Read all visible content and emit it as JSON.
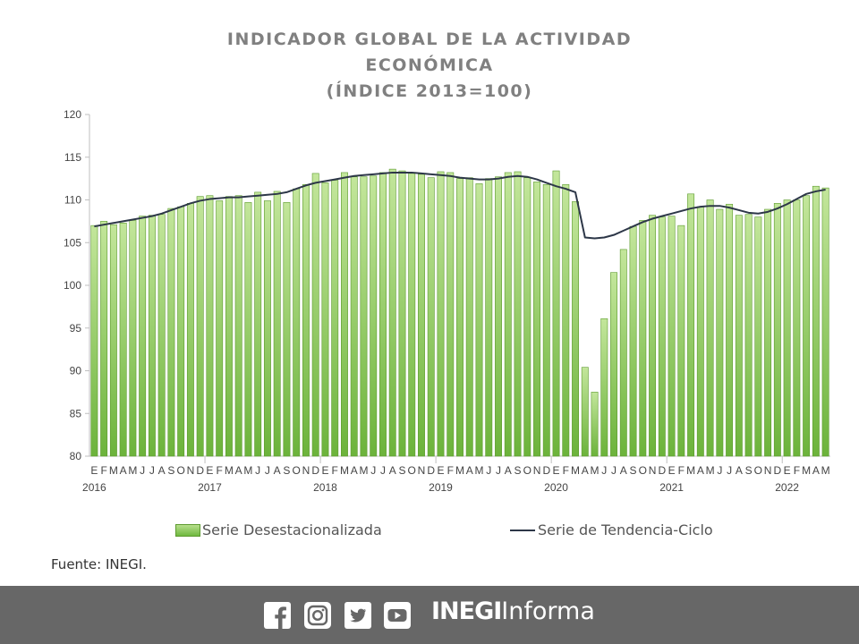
{
  "title_lines": [
    "INDICADOR GLOBAL DE LA ACTIVIDAD",
    "ECONÓMICA",
    "(ÍNDICE 2013=100)"
  ],
  "legend": {
    "bars": "Serie Desestacionalizada",
    "line": "Serie de Tendencia-Ciclo"
  },
  "source": "Fuente: INEGI.",
  "footer": {
    "icons": [
      "facebook-icon",
      "instagram-icon",
      "twitter-icon",
      "youtube-icon"
    ],
    "brand_bold": "INEGI",
    "brand_light": "Informa"
  },
  "colors": {
    "bar_fill_top": "#b7df8c",
    "bar_fill_bottom": "#6fb83f",
    "bar_stroke": "#5c9a2e",
    "line": "#2d3748",
    "footer_bg": "#676767",
    "title": "#808080"
  },
  "chart_data": {
    "type": "bar",
    "ylim": [
      80,
      120
    ],
    "yticks": [
      80,
      85,
      90,
      95,
      100,
      105,
      110,
      115,
      120
    ],
    "month_labels": [
      "E",
      "F",
      "M",
      "A",
      "M",
      "J",
      "J",
      "A",
      "S",
      "O",
      "N",
      "D",
      "E",
      "F",
      "M",
      "A",
      "M",
      "J",
      "J",
      "A",
      "S",
      "O",
      "N",
      "D",
      "E",
      "F",
      "M",
      "A",
      "M",
      "J",
      "J",
      "A",
      "S",
      "O",
      "N",
      "D",
      "E",
      "F",
      "M",
      "A",
      "M",
      "J",
      "J",
      "A",
      "S",
      "O",
      "N",
      "D",
      "E",
      "F",
      "M",
      "A",
      "M",
      "J",
      "J",
      "A",
      "S",
      "O",
      "N",
      "D",
      "E",
      "F",
      "M",
      "A",
      "M",
      "J",
      "J",
      "A",
      "S",
      "O",
      "N",
      "D",
      "E",
      "F",
      "M",
      "A",
      "M"
    ],
    "year_labels": [
      {
        "index": 0,
        "label": "2016"
      },
      {
        "index": 12,
        "label": "2017"
      },
      {
        "index": 24,
        "label": "2018"
      },
      {
        "index": 36,
        "label": "2019"
      },
      {
        "index": 48,
        "label": "2020"
      },
      {
        "index": 60,
        "label": "2021"
      },
      {
        "index": 72,
        "label": "2022"
      }
    ],
    "series": [
      {
        "name": "Serie Desestacionalizada",
        "type": "bar",
        "values": [
          107.0,
          107.5,
          107.1,
          107.3,
          107.6,
          108.1,
          108.2,
          108.3,
          109.0,
          109.2,
          109.6,
          110.4,
          110.5,
          109.9,
          110.4,
          110.5,
          109.7,
          110.9,
          109.9,
          111.0,
          109.7,
          111.3,
          111.8,
          113.1,
          112.0,
          112.3,
          113.2,
          112.7,
          112.7,
          112.8,
          113.2,
          113.6,
          113.4,
          113.1,
          113.0,
          112.6,
          113.3,
          113.2,
          112.5,
          112.6,
          111.9,
          112.5,
          112.7,
          113.2,
          113.3,
          112.6,
          112.1,
          111.8,
          113.4,
          111.8,
          109.8,
          90.4,
          87.5,
          96.1,
          101.5,
          104.2,
          106.9,
          107.6,
          108.2,
          108.0,
          108.1,
          107.0,
          110.7,
          109.2,
          110.0,
          108.9,
          109.5,
          108.2,
          108.3,
          108.0,
          108.9,
          109.6,
          110.0,
          110.0,
          110.5,
          111.6,
          111.4
        ]
      },
      {
        "name": "Serie de Tendencia-Ciclo",
        "type": "line",
        "values": [
          106.9,
          107.1,
          107.3,
          107.5,
          107.7,
          107.9,
          108.1,
          108.4,
          108.8,
          109.2,
          109.6,
          109.9,
          110.1,
          110.2,
          110.3,
          110.3,
          110.4,
          110.5,
          110.6,
          110.7,
          110.9,
          111.3,
          111.7,
          112.0,
          112.2,
          112.4,
          112.6,
          112.8,
          112.9,
          113.0,
          113.1,
          113.2,
          113.2,
          113.2,
          113.1,
          113.0,
          112.9,
          112.8,
          112.6,
          112.5,
          112.4,
          112.4,
          112.5,
          112.7,
          112.8,
          112.7,
          112.4,
          112.0,
          111.6,
          111.3,
          110.9,
          105.6,
          105.5,
          105.6,
          105.9,
          106.4,
          106.9,
          107.4,
          107.8,
          108.1,
          108.4,
          108.7,
          109.0,
          109.2,
          109.3,
          109.3,
          109.1,
          108.8,
          108.5,
          108.4,
          108.6,
          109.0,
          109.5,
          110.1,
          110.7,
          111.0,
          111.2
        ]
      }
    ]
  }
}
